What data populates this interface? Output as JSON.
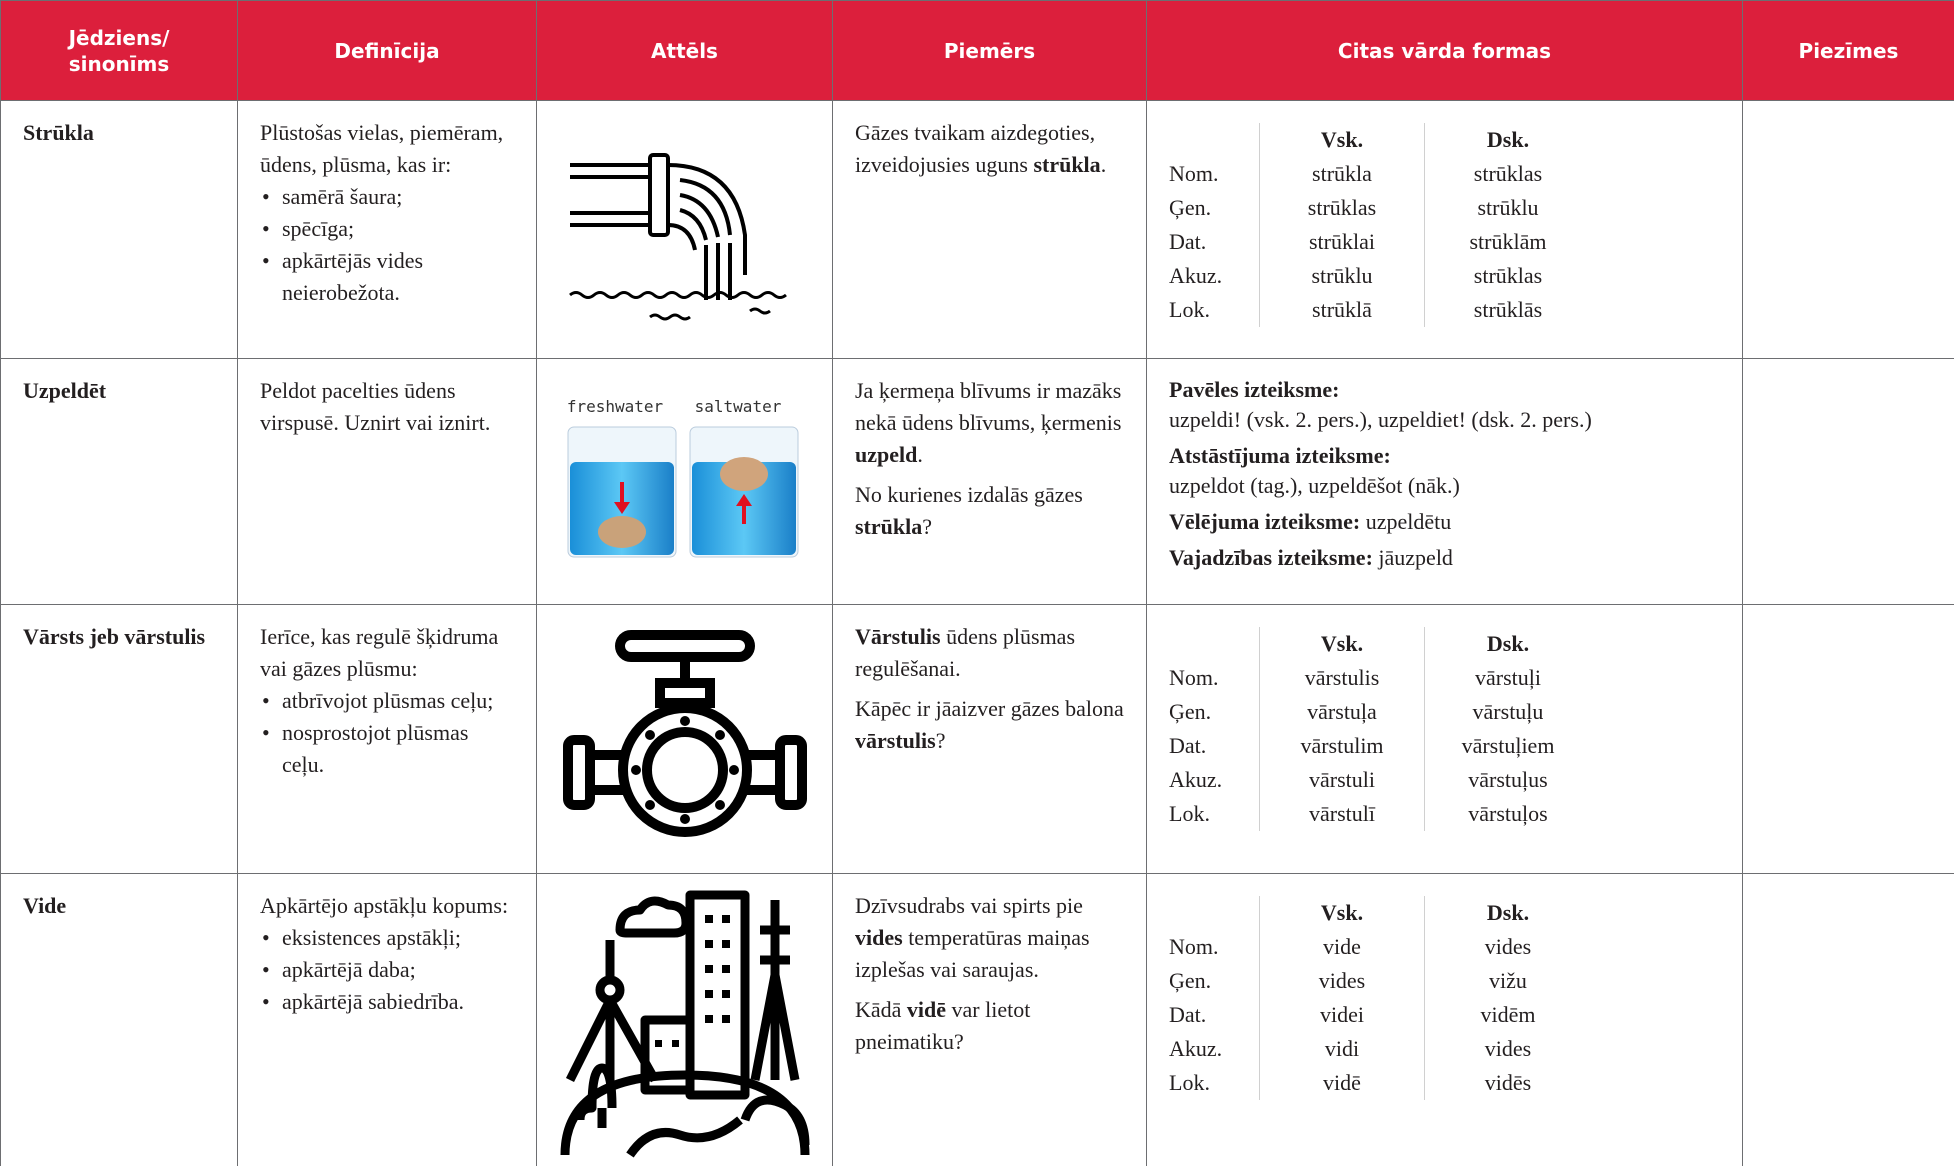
{
  "table": {
    "header": [
      "Jēdziens/ sinonīms",
      "Definīcija",
      "Attēls",
      "Piemērs",
      "Citas vārda formas",
      "Piezīmes"
    ],
    "rows": [
      {
        "term": "Strūkla",
        "definition": {
          "intro": "Plūstošas vielas, piemēram, ūdens, plūsma, kas ir:",
          "bullets": [
            "samērā šaura;",
            "spēcīga;",
            "apkārtējās vides neierobežota."
          ]
        },
        "example": [
          [
            "Gāzes tvaikam aizdegoties, izveidojusies uguns ",
            {
              "bold": "strūkla"
            },
            "."
          ]
        ],
        "forms": {
          "columns": [
            "Vsk.",
            "Dsk."
          ],
          "cases": [
            [
              "Nom.",
              "strūkla",
              "strūklas"
            ],
            [
              "Ģen.",
              "strūklas",
              "strūklu"
            ],
            [
              "Dat.",
              "strūklai",
              "strūklām"
            ],
            [
              "Akuz.",
              "strūklu",
              "strūklas"
            ],
            [
              "Lok.",
              "strūklā",
              "strūklās"
            ]
          ]
        }
      },
      {
        "term": "Uzpeldēt",
        "definition": {
          "intro": "Peldot pacelties ūdens virspusē. Uznirt vai iznirt."
        },
        "image_labels": [
          "freshwater",
          "saltwater"
        ],
        "example": [
          [
            "Ja ķermeņa blīvums ir mazāks nekā ūdens blīvums, ķermenis ",
            {
              "bold": "uzpeld"
            },
            "."
          ],
          [
            "No kurienes izdalās gāzes ",
            {
              "bold": "strūkla"
            },
            "?"
          ]
        ],
        "forms": {
          "moods": [
            {
              "label": "Pavēles izteiksme:",
              "text": "uzpeldi! (vsk. 2. pers.), uzpeldiet! (dsk. 2. pers.)"
            },
            {
              "label": "Atstāstījuma izteiksme:",
              "text": "uzpeldot (tag.), uzpeldēšot (nāk.)"
            },
            {
              "label": "Vēlējuma izteiksme:",
              "text": "uzpeldētu"
            },
            {
              "label": "Vajadzības izteiksme:",
              "text": "jāuzpeld"
            }
          ]
        }
      },
      {
        "term": "Vārsts jeb vārstulis",
        "definition": {
          "intro": "Ierīce, kas regulē šķidruma vai gāzes plūsmu:",
          "bullets": [
            "atbrīvojot plūsmas ceļu;",
            "nosprostojot plūsmas ceļu."
          ]
        },
        "example": [
          [
            {
              "bold": "Vārstulis"
            },
            " ūdens plūsmas regulēšanai."
          ],
          [
            "Kāpēc ir jāaizver gāzes balona ",
            {
              "bold": "vārstulis"
            },
            "?"
          ]
        ],
        "forms": {
          "columns": [
            "Vsk.",
            "Dsk."
          ],
          "cases": [
            [
              "Nom.",
              "vārstulis",
              "vārstuļi"
            ],
            [
              "Ģen.",
              "vārstuļa",
              "vārstuļu"
            ],
            [
              "Dat.",
              "vārstulim",
              "vārstuļiem"
            ],
            [
              "Akuz.",
              "vārstuli",
              "vārstuļus"
            ],
            [
              "Lok.",
              "vārstulī",
              "vārstuļos"
            ]
          ]
        }
      },
      {
        "term": "Vide",
        "definition": {
          "intro": "Apkārtējo apstākļu kopums:",
          "bullets": [
            "eksistences apstākļi;",
            "apkārtējā daba;",
            "apkārtējā sabiedrība."
          ]
        },
        "example": [
          [
            "Dzīvsudrabs vai spirts pie ",
            {
              "bold": "vides"
            },
            " temperatūras maiņas izplešas vai saraujas."
          ],
          [
            "Kādā ",
            {
              "bold": "vidē"
            },
            " var lietot pneimatiku?"
          ]
        ],
        "forms": {
          "columns": [
            "Vsk.",
            "Dsk."
          ],
          "cases": [
            [
              "Nom.",
              "vide",
              "vides"
            ],
            [
              "Ģen.",
              "vides",
              "vižu"
            ],
            [
              "Dat.",
              "videi",
              "vidēm"
            ],
            [
              "Akuz.",
              "vidi",
              "vides"
            ],
            [
              "Lok.",
              "vidē",
              "vidēs"
            ]
          ]
        }
      }
    ]
  }
}
